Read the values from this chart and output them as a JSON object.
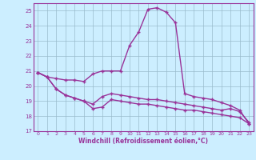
{
  "x": [
    0,
    1,
    2,
    3,
    4,
    5,
    6,
    7,
    8,
    9,
    10,
    11,
    12,
    13,
    14,
    15,
    16,
    17,
    18,
    19,
    20,
    21,
    22,
    23
  ],
  "line_top": [
    20.9,
    20.6,
    20.5,
    20.4,
    20.4,
    20.3,
    20.8,
    21.0,
    21.0,
    21.0,
    22.7,
    23.6,
    25.1,
    25.2,
    24.9,
    24.2,
    19.5,
    19.3,
    19.2,
    19.1,
    18.9,
    18.7,
    18.4,
    17.5
  ],
  "line_mid": [
    20.9,
    20.6,
    19.8,
    19.4,
    19.2,
    19.0,
    18.8,
    19.3,
    19.5,
    19.4,
    19.3,
    19.2,
    19.1,
    19.1,
    19.0,
    18.9,
    18.8,
    18.7,
    18.6,
    18.5,
    18.4,
    18.5,
    18.3,
    17.6
  ],
  "line_low": [
    20.9,
    20.6,
    19.8,
    19.4,
    19.2,
    19.0,
    18.5,
    18.6,
    19.1,
    19.0,
    18.9,
    18.8,
    18.8,
    18.7,
    18.6,
    18.5,
    18.4,
    18.4,
    18.3,
    18.2,
    18.1,
    18.0,
    17.9,
    17.5
  ],
  "xlabel": "Windchill (Refroidissement éolien,°C)",
  "xlim": [
    -0.5,
    23.5
  ],
  "ylim": [
    17.0,
    25.5
  ],
  "yticks": [
    17,
    18,
    19,
    20,
    21,
    22,
    23,
    24,
    25
  ],
  "xticks": [
    0,
    1,
    2,
    3,
    4,
    5,
    6,
    7,
    8,
    9,
    10,
    11,
    12,
    13,
    14,
    15,
    16,
    17,
    18,
    19,
    20,
    21,
    22,
    23
  ],
  "line_color": "#993399",
  "bg_color": "#cceeff",
  "grid_color": "#99bbcc"
}
